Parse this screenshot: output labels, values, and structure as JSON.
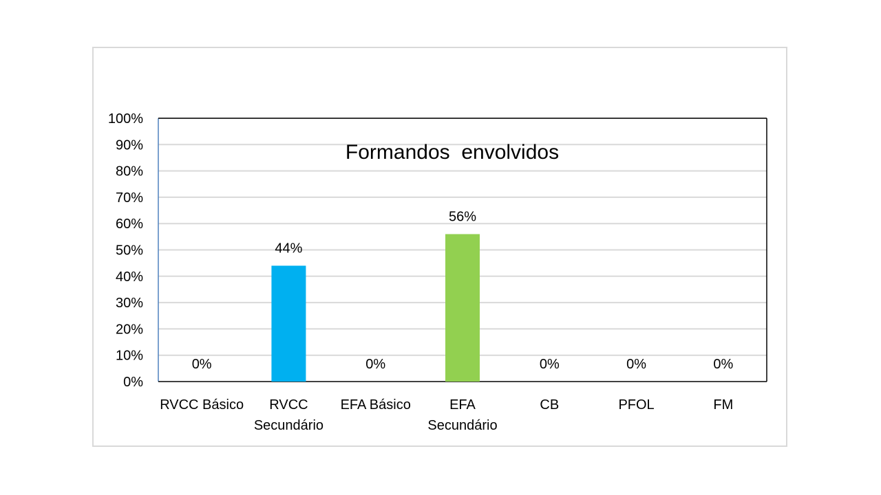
{
  "chart_data": {
    "type": "bar",
    "title": "Formandos  envolvidos",
    "categories": [
      [
        "RVCC Básico"
      ],
      [
        "RVCC",
        "Secundário"
      ],
      [
        "EFA Básico"
      ],
      [
        "EFA",
        "Secundário"
      ],
      [
        "CB"
      ],
      [
        "PFOL"
      ],
      [
        "FM"
      ]
    ],
    "values": [
      0,
      44,
      0,
      56,
      0,
      0,
      0
    ],
    "data_labels": [
      "0%",
      "44%",
      "0%",
      "56%",
      "0%",
      "0%",
      "0%"
    ],
    "colors": [
      "#00b0f0",
      "#00b0f0",
      "#92d050",
      "#92d050",
      "#00b0f0",
      "#00b0f0",
      "#00b0f0"
    ],
    "ylim": [
      0,
      100
    ],
    "y_ticks": [
      "0%",
      "10%",
      "20%",
      "30%",
      "40%",
      "50%",
      "60%",
      "70%",
      "80%",
      "90%",
      "100%"
    ],
    "grid": true,
    "xlabel": "",
    "ylabel": ""
  }
}
